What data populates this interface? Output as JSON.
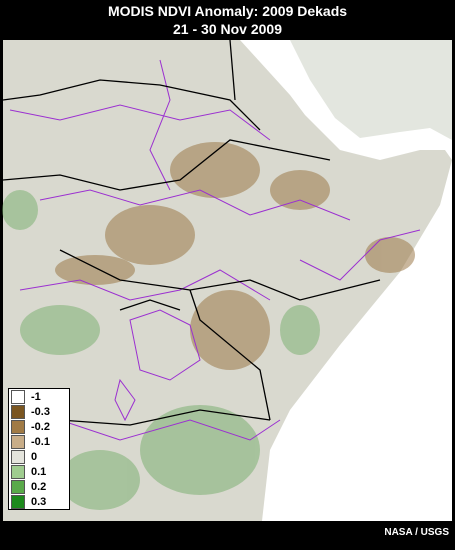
{
  "title": "MODIS NDVI Anomaly: 2009 Dekads",
  "subtitle": "21 - 30 Nov 2009",
  "legend": [
    {
      "value": -1,
      "color": "#ffffff"
    },
    {
      "value": -0.3,
      "color": "#7a5520"
    },
    {
      "value": -0.2,
      "color": "#a07a45"
    },
    {
      "value": -0.1,
      "color": "#c8ad88"
    },
    {
      "value": 0,
      "color": "#e4e4dc"
    },
    {
      "value": 0.1,
      "color": "#9fcc8f"
    },
    {
      "value": 0.2,
      "color": "#5aaa4a"
    },
    {
      "value": 0.3,
      "color": "#1c8a1c"
    }
  ],
  "credit": "NASA / USGS"
}
